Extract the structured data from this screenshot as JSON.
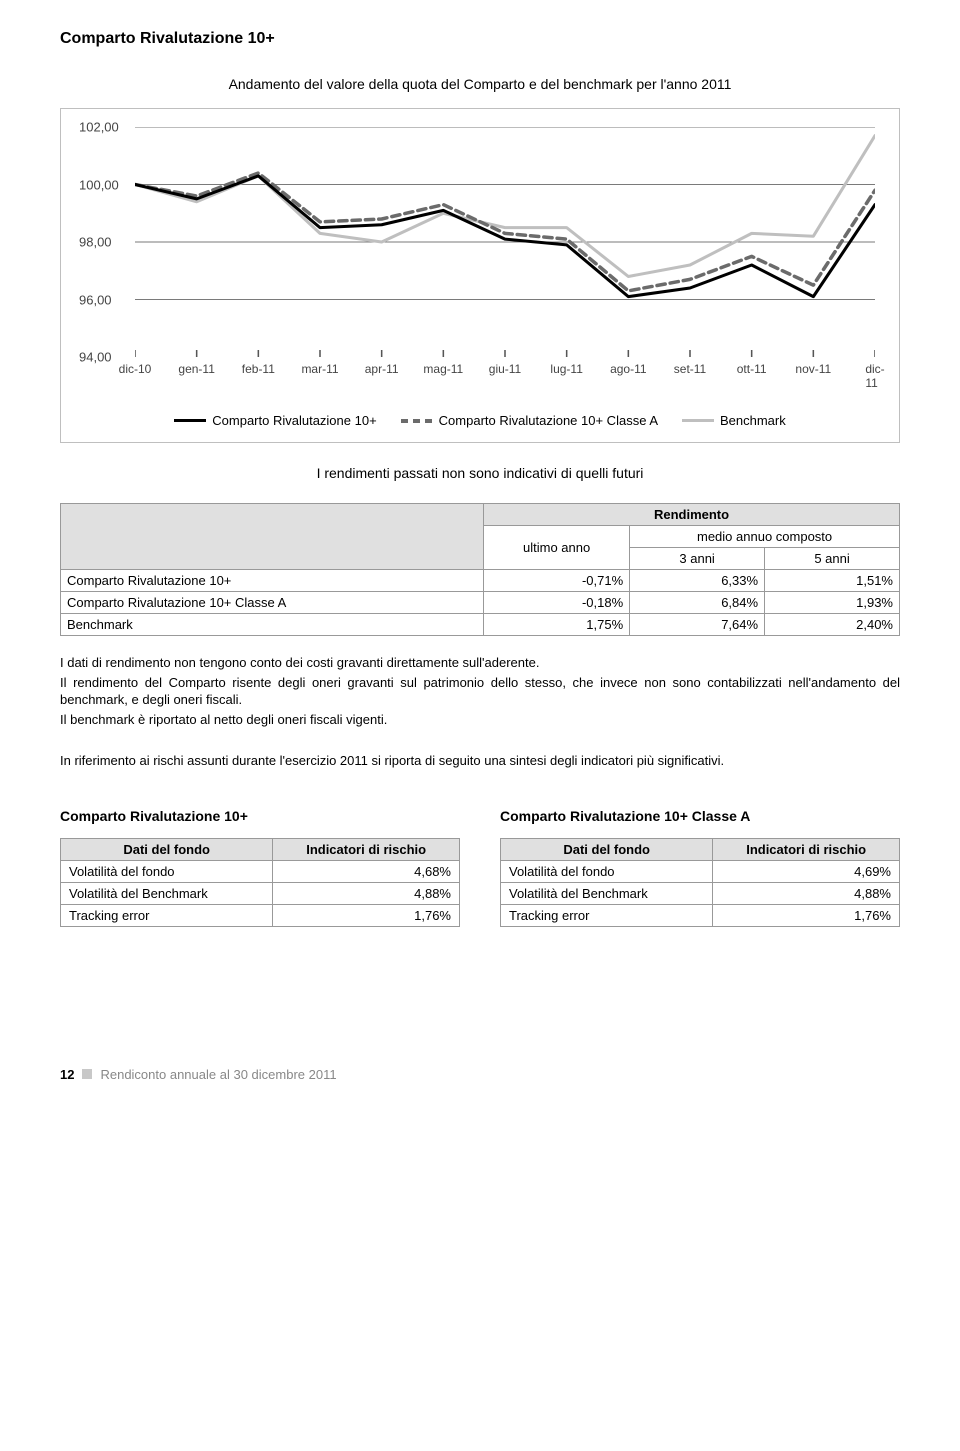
{
  "title": "Comparto Rivalutazione 10+",
  "subtitle": "Andamento del valore della quota del Comparto e del benchmark per l'anno 2011",
  "chart": {
    "type": "line",
    "ylim": [
      94,
      102
    ],
    "ytick_step": 2,
    "yticks": [
      "102,00",
      "100,00",
      "98,00",
      "96,00",
      "94,00"
    ],
    "xlabels": [
      "dic-10",
      "gen-11",
      "feb-11",
      "mar-11",
      "apr-11",
      "mag-11",
      "giu-11",
      "lug-11",
      "ago-11",
      "set-11",
      "ott-11",
      "nov-11",
      "dic-11"
    ],
    "series": [
      {
        "name": "Comparto Rivalutazione 10+",
        "color": "#000000",
        "dash": "none",
        "width": 3,
        "values": [
          100.0,
          99.5,
          100.3,
          98.5,
          98.6,
          99.1,
          98.1,
          97.9,
          96.1,
          96.4,
          97.2,
          96.1,
          99.3
        ]
      },
      {
        "name": "Comparto Rivalutazione 10+ Classe A",
        "color": "#6b6b6b",
        "dash": "8,5",
        "width": 3.5,
        "values": [
          100.0,
          99.6,
          100.4,
          98.7,
          98.8,
          99.3,
          98.3,
          98.1,
          96.3,
          96.7,
          97.5,
          96.5,
          99.8
        ]
      },
      {
        "name": "Benchmark",
        "color": "#bfbfbf",
        "dash": "none",
        "width": 3,
        "values": [
          100.0,
          99.4,
          100.3,
          98.3,
          98.0,
          99.0,
          98.5,
          98.5,
          96.8,
          97.2,
          98.3,
          98.2,
          101.7
        ]
      }
    ],
    "grid_color": "#7a7a7a",
    "tick_color": "#555555",
    "background_color": "#ffffff",
    "label_fontsize": 12
  },
  "legend": {
    "items": [
      {
        "label": "Comparto Rivalutazione 10+",
        "color": "#000000",
        "dash": "none"
      },
      {
        "label": "Comparto Rivalutazione 10+ Classe A",
        "color": "#6b6b6b",
        "dash": "dashed"
      },
      {
        "label": "Benchmark",
        "color": "#bfbfbf",
        "dash": "none"
      }
    ]
  },
  "note": "I rendimenti passati non sono indicativi di quelli futuri",
  "rend_table": {
    "head": {
      "rendimento": "Rendimento",
      "ultimo": "ultimo anno",
      "medio": "medio annuo composto",
      "a3": "3 anni",
      "a5": "5 anni"
    },
    "rows": [
      {
        "label": "Comparto Rivalutazione 10+",
        "c1": "-0,71%",
        "c2": "6,33%",
        "c3": "1,51%"
      },
      {
        "label": "Comparto Rivalutazione 10+ Classe A",
        "c1": "-0,18%",
        "c2": "6,84%",
        "c3": "1,93%"
      },
      {
        "label": "Benchmark",
        "c1": "1,75%",
        "c2": "7,64%",
        "c3": "2,40%"
      }
    ]
  },
  "body": {
    "p1": "I dati di rendimento non tengono conto dei costi gravanti direttamente sull'aderente.",
    "p2": "Il rendimento del Comparto risente degli oneri gravanti sul patrimonio dello stesso, che invece non sono contabilizzati nell'andamento del benchmark, e degli oneri fiscali.",
    "p3": "Il benchmark è riportato al netto degli oneri fiscali vigenti.",
    "p4": "In riferimento ai rischi assunti durante l'esercizio 2011 si riporta di seguito una sintesi degli indicatori più significativi."
  },
  "risk": {
    "left": {
      "title": "Comparto Rivalutazione 10+",
      "head1": "Dati del fondo",
      "head2": "Indicatori di rischio",
      "rows": [
        {
          "label": "Volatilità del fondo",
          "val": "4,68%"
        },
        {
          "label": "Volatilità del Benchmark",
          "val": "4,88%"
        },
        {
          "label": "Tracking error",
          "val": "1,76%"
        }
      ]
    },
    "right": {
      "title": "Comparto Rivalutazione 10+ Classe A",
      "head1": "Dati del fondo",
      "head2": "Indicatori di rischio",
      "rows": [
        {
          "label": "Volatilità del fondo",
          "val": "4,69%"
        },
        {
          "label": "Volatilità del Benchmark",
          "val": "4,88%"
        },
        {
          "label": "Tracking error",
          "val": "1,76%"
        }
      ]
    }
  },
  "footer": {
    "page": "12",
    "text": "Rendiconto annuale al 30 dicembre 2011"
  }
}
